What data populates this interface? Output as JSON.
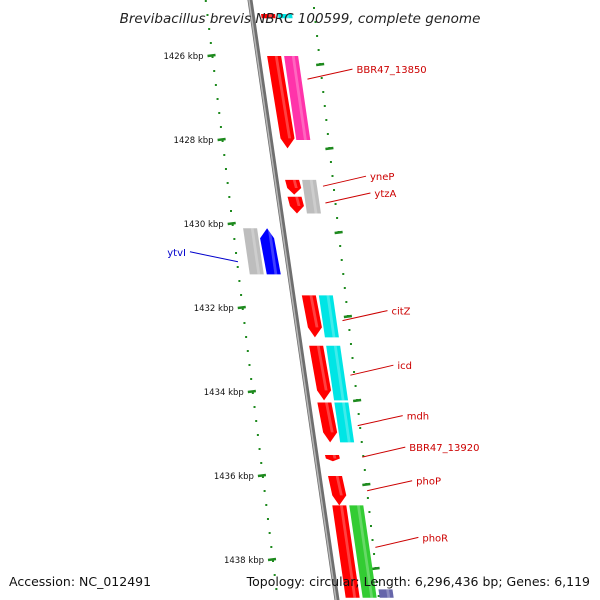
{
  "title": "Brevibacillus brevis NBRC 100599, complete genome",
  "footer": {
    "accession": "Accession: NC_012491",
    "summary": "Topology: circular; Length: 6,296,436 bp; Genes: 6,119"
  },
  "colors": {
    "backbone": "#8a8a8a",
    "tick": "#1e8a1e",
    "label_red": "#cc0000",
    "label_blue": "#0000cc"
  },
  "ticks": [
    {
      "label": "1426 kbp",
      "kbp": 1426
    },
    {
      "label": "1428 kbp",
      "kbp": 1428
    },
    {
      "label": "1430 kbp",
      "kbp": 1430
    },
    {
      "label": "1432 kbp",
      "kbp": 1432
    },
    {
      "label": "1434 kbp",
      "kbp": 1434
    },
    {
      "label": "1436 kbp",
      "kbp": 1436
    },
    {
      "label": "1438 kbp",
      "kbp": 1438
    }
  ],
  "features": [
    {
      "kbp_start": 1425.0,
      "kbp_end": 1425.1,
      "track": 1,
      "color": "#ff0000",
      "arrow": false
    },
    {
      "kbp_start": 1425.0,
      "kbp_end": 1425.1,
      "track": 2,
      "color": "#00e5e5",
      "arrow": false
    },
    {
      "kbp_start": 1426.0,
      "kbp_end": 1428.2,
      "track": 1,
      "color": "#ff0000",
      "arrow": true
    },
    {
      "kbp_start": 1426.0,
      "kbp_end": 1428.0,
      "track": 2,
      "color": "#ff33aa",
      "arrow": false
    },
    {
      "kbp_start": 1428.95,
      "kbp_end": 1429.3,
      "track": 1,
      "color": "#ff0000",
      "arrow": true
    },
    {
      "kbp_start": 1429.35,
      "kbp_end": 1429.75,
      "track": 1,
      "color": "#ff0000",
      "arrow": true
    },
    {
      "kbp_start": 1428.95,
      "kbp_end": 1429.75,
      "track": 2,
      "color": "#bdbdbd",
      "arrow": false
    },
    {
      "kbp_start": 1430.1,
      "kbp_end": 1431.2,
      "track": -2,
      "color": "#bdbdbd",
      "arrow": false
    },
    {
      "kbp_start": 1430.1,
      "kbp_end": 1431.2,
      "track": -1,
      "color": "#0000ff",
      "arrow": true,
      "reverse": true
    },
    {
      "kbp_start": 1431.7,
      "kbp_end": 1432.7,
      "track": 1,
      "color": "#ff0000",
      "arrow": true
    },
    {
      "kbp_start": 1431.7,
      "kbp_end": 1432.7,
      "track": 2,
      "color": "#00e5e5",
      "arrow": false
    },
    {
      "kbp_start": 1432.9,
      "kbp_end": 1434.2,
      "track": 1,
      "color": "#ff0000",
      "arrow": true
    },
    {
      "kbp_start": 1432.9,
      "kbp_end": 1434.2,
      "track": 2,
      "color": "#00e5e5",
      "arrow": false
    },
    {
      "kbp_start": 1434.25,
      "kbp_end": 1435.2,
      "track": 1,
      "color": "#ff0000",
      "arrow": true
    },
    {
      "kbp_start": 1434.25,
      "kbp_end": 1435.2,
      "track": 2,
      "color": "#00e5e5",
      "arrow": false
    },
    {
      "kbp_start": 1435.5,
      "kbp_end": 1435.65,
      "track": 1,
      "color": "#ff0000",
      "arrow": true
    },
    {
      "kbp_start": 1436.0,
      "kbp_end": 1436.7,
      "track": 1,
      "color": "#ff0000",
      "arrow": true
    },
    {
      "kbp_start": 1436.7,
      "kbp_end": 1438.9,
      "track": 1,
      "color": "#ff0000",
      "arrow": false
    },
    {
      "kbp_start": 1436.7,
      "kbp_end": 1438.9,
      "track": 2,
      "color": "#33cc33",
      "arrow": false
    },
    {
      "kbp_start": 1438.7,
      "kbp_end": 1438.9,
      "track": 3,
      "color": "#6666aa",
      "arrow": false
    }
  ],
  "labels": [
    {
      "text": "BBR47_13850",
      "kbp": 1426.55,
      "side": "right",
      "color": "#cc0000"
    },
    {
      "text": "yneP",
      "kbp": 1429.1,
      "side": "right",
      "color": "#cc0000"
    },
    {
      "text": "ytzA",
      "kbp": 1429.5,
      "side": "right",
      "color": "#cc0000"
    },
    {
      "text": "ytvI",
      "kbp": 1430.9,
      "side": "left",
      "color": "#0000cc"
    },
    {
      "text": "citZ",
      "kbp": 1432.3,
      "side": "right",
      "color": "#cc0000"
    },
    {
      "text": "icd",
      "kbp": 1433.6,
      "side": "right",
      "color": "#cc0000"
    },
    {
      "text": "mdh",
      "kbp": 1434.8,
      "side": "right",
      "color": "#cc0000"
    },
    {
      "text": "BBR47_13920",
      "kbp": 1435.55,
      "side": "right",
      "color": "#cc0000"
    },
    {
      "text": "phoP",
      "kbp": 1436.35,
      "side": "right",
      "color": "#cc0000"
    },
    {
      "text": "phoR",
      "kbp": 1437.7,
      "side": "right",
      "color": "#cc0000"
    }
  ]
}
